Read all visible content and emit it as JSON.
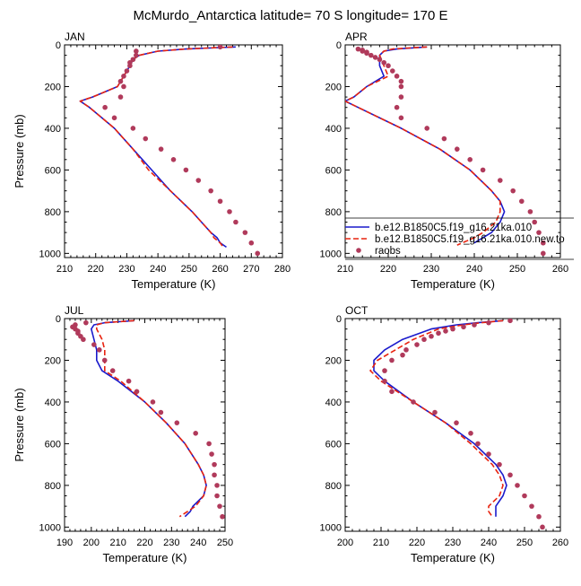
{
  "title": "McMurdo_Antarctica  latitude= 70 S longitude= 170 E",
  "colors": {
    "model1": "#1a1acc",
    "model2": "#e8230f",
    "obs": "#b03a5b",
    "frame": "#000000"
  },
  "legend": {
    "entries": [
      "b.e12.B1850C5.f19_g16.21ka.010",
      "b.e12.B1850C5.f19_g16.21ka.010.new.to",
      "raobs"
    ]
  },
  "chart_data": [
    {
      "type": "line",
      "panel": "JAN",
      "xlabel": "Temperature (K)",
      "ylabel": "Pressure (mb)",
      "xlim": [
        210,
        280
      ],
      "ylim": [
        1020,
        0
      ],
      "xticks": [
        210,
        220,
        230,
        240,
        250,
        260,
        270,
        280
      ],
      "yticks": [
        0,
        200,
        400,
        600,
        800,
        1000
      ],
      "series": [
        {
          "role": "model1",
          "p": [
            10,
            20,
            30,
            50,
            70,
            100,
            150,
            200,
            250,
            270,
            300,
            400,
            500,
            600,
            700,
            800,
            850,
            900,
            925,
            950,
            970
          ],
          "t": [
            265,
            249,
            240,
            234,
            232,
            231,
            229,
            227,
            219,
            215,
            218,
            226,
            232,
            238,
            244,
            251,
            254,
            257,
            259,
            260,
            262
          ]
        },
        {
          "role": "model2",
          "p": [
            10,
            20,
            30,
            50,
            70,
            100,
            150,
            200,
            250,
            270,
            300,
            400,
            500,
            600,
            700,
            800,
            850,
            900,
            925,
            950,
            970
          ],
          "t": [
            264,
            249,
            240,
            234,
            232,
            231,
            229,
            227,
            219,
            215,
            218,
            226,
            232,
            237,
            244,
            251,
            254,
            257,
            258,
            260,
            261
          ]
        },
        {
          "role": "obs",
          "p": [
            10,
            30,
            50,
            70,
            85,
            100,
            125,
            150,
            175,
            200,
            250,
            300,
            350,
            400,
            450,
            500,
            550,
            600,
            650,
            700,
            750,
            800,
            850,
            900,
            950,
            1000
          ],
          "t": [
            260,
            233,
            233,
            232,
            231,
            231,
            230,
            229,
            228,
            229,
            228,
            223,
            226,
            232,
            236,
            241,
            245,
            249,
            253,
            257,
            260,
            263,
            265,
            268,
            270,
            272
          ]
        }
      ]
    },
    {
      "type": "line",
      "panel": "APR",
      "xlabel": "Temperature (K)",
      "ylabel": "",
      "xlim": [
        210,
        260
      ],
      "ylim": [
        1020,
        0
      ],
      "xticks": [
        210,
        220,
        230,
        240,
        250,
        260
      ],
      "yticks": [
        0,
        200,
        400,
        600,
        800,
        1000
      ],
      "series": [
        {
          "role": "model1",
          "p": [
            10,
            20,
            30,
            50,
            100,
            150,
            200,
            250,
            270,
            300,
            400,
            500,
            600,
            700,
            750,
            800,
            850,
            900,
            925,
            950
          ],
          "t": [
            229,
            222,
            219,
            218,
            218,
            219,
            215,
            212,
            210,
            213,
            223,
            232,
            239,
            244,
            246,
            247,
            246,
            244,
            242,
            240
          ]
        },
        {
          "role": "model2",
          "p": [
            10,
            20,
            30,
            50,
            100,
            150,
            200,
            250,
            270,
            300,
            400,
            500,
            600,
            700,
            750,
            800,
            850,
            900,
            925,
            960
          ],
          "t": [
            229,
            221,
            219,
            218,
            219,
            220,
            215,
            212,
            210,
            213,
            223,
            232,
            239,
            244,
            246,
            246,
            245,
            242,
            240,
            236
          ]
        },
        {
          "role": "obs",
          "p": [
            20,
            25,
            30,
            35,
            40,
            50,
            60,
            70,
            85,
            100,
            125,
            150,
            175,
            200,
            250,
            300,
            350,
            400,
            450,
            500,
            550,
            600,
            650,
            700,
            750,
            800,
            850,
            900,
            950,
            1000
          ],
          "t": [
            213,
            214,
            214,
            215,
            215,
            216,
            217,
            218,
            219,
            220,
            221,
            222,
            223,
            223,
            223,
            222,
            223,
            229,
            233,
            236,
            239,
            242,
            246,
            249,
            251,
            253,
            254,
            255,
            256,
            256
          ]
        }
      ]
    },
    {
      "type": "line",
      "panel": "JUL",
      "xlabel": "Temperature (K)",
      "ylabel": "Pressure (mb)",
      "xlim": [
        190,
        250
      ],
      "ylim": [
        1020,
        0
      ],
      "xticks": [
        190,
        200,
        210,
        220,
        230,
        240,
        250
      ],
      "yticks": [
        0,
        200,
        400,
        600,
        800,
        1000
      ],
      "series": [
        {
          "role": "model1",
          "p": [
            10,
            20,
            30,
            50,
            100,
            150,
            200,
            250,
            300,
            400,
            500,
            600,
            700,
            750,
            800,
            850,
            900,
            925,
            950
          ],
          "t": [
            216,
            205,
            201,
            200,
            201,
            202,
            202,
            204,
            210,
            220,
            228,
            235,
            240,
            242,
            243,
            242,
            238,
            237,
            235
          ]
        },
        {
          "role": "model2",
          "p": [
            10,
            20,
            30,
            50,
            100,
            150,
            200,
            250,
            300,
            400,
            500,
            600,
            700,
            750,
            800,
            850,
            900,
            925,
            950
          ],
          "t": [
            216,
            205,
            202,
            202,
            204,
            205,
            205,
            205,
            211,
            220,
            228,
            235,
            240,
            242,
            243,
            242,
            239,
            236,
            233
          ]
        },
        {
          "role": "obs",
          "p": [
            20,
            30,
            40,
            50,
            60,
            70,
            85,
            100,
            125,
            150,
            200,
            250,
            300,
            350,
            400,
            450,
            500,
            550,
            600,
            650,
            700,
            750,
            800,
            850,
            900,
            950
          ],
          "t": [
            198,
            194,
            193,
            194,
            195,
            195,
            196,
            197,
            201,
            203,
            205,
            208,
            214,
            217,
            223,
            226,
            232,
            239,
            244,
            245,
            246,
            246,
            247,
            247,
            248,
            249
          ]
        }
      ]
    },
    {
      "type": "line",
      "panel": "OCT",
      "xlabel": "Temperature (K)",
      "ylabel": "",
      "xlim": [
        200,
        260
      ],
      "ylim": [
        1020,
        0
      ],
      "xticks": [
        200,
        210,
        220,
        230,
        240,
        250,
        260
      ],
      "yticks": [
        0,
        200,
        400,
        600,
        800,
        1000
      ],
      "series": [
        {
          "role": "model1",
          "p": [
            10,
            20,
            30,
            50,
            100,
            150,
            200,
            250,
            300,
            400,
            500,
            600,
            700,
            750,
            800,
            850,
            900,
            925,
            950
          ],
          "t": [
            244,
            237,
            231,
            224,
            216,
            211,
            208,
            208,
            211,
            219,
            228,
            236,
            242,
            244,
            245,
            244,
            242,
            242,
            242
          ]
        },
        {
          "role": "model2",
          "p": [
            10,
            20,
            30,
            50,
            100,
            150,
            200,
            250,
            300,
            400,
            500,
            600,
            700,
            750,
            800,
            850,
            900,
            925,
            950
          ],
          "t": [
            244,
            238,
            233,
            226,
            219,
            214,
            209,
            207,
            210,
            219,
            228,
            235,
            241,
            243,
            244,
            243,
            240,
            240,
            241
          ]
        },
        {
          "role": "obs",
          "p": [
            10,
            20,
            30,
            40,
            50,
            60,
            70,
            85,
            100,
            125,
            150,
            175,
            200,
            250,
            300,
            350,
            400,
            450,
            500,
            550,
            600,
            650,
            700,
            750,
            800,
            850,
            900,
            950,
            1000
          ],
          "t": [
            246,
            240,
            236,
            233,
            230,
            228,
            226,
            224,
            222,
            220,
            217,
            216,
            213,
            211,
            211,
            213,
            219,
            225,
            231,
            235,
            237,
            240,
            243,
            246,
            248,
            250,
            252,
            254,
            255
          ]
        }
      ]
    }
  ]
}
